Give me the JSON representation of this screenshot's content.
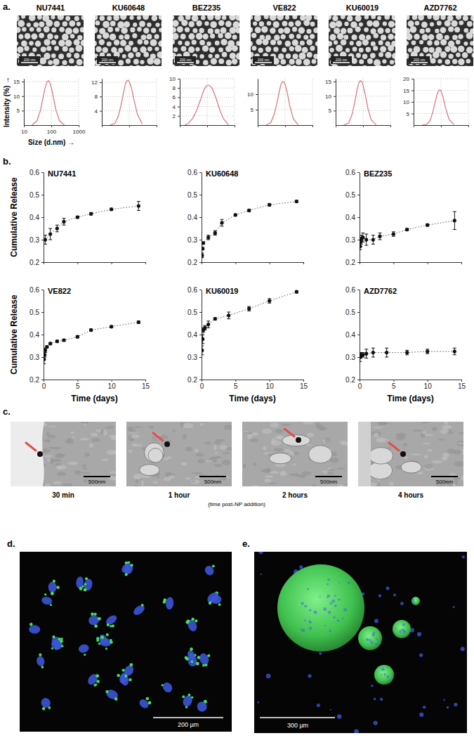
{
  "panel_labels": [
    "a.",
    "b.",
    "c.",
    "d.",
    "e."
  ],
  "tem_images": {
    "scale_bar": "200 nm"
  },
  "chart_data": [
    {
      "type": "line",
      "title": "NU7441",
      "xlabel": "Size (d.nm) →",
      "ylabel": "Intensity (%) →",
      "x": [
        20,
        30,
        40,
        50,
        60,
        70,
        80,
        90,
        100,
        120,
        150,
        200,
        300
      ],
      "values": [
        0,
        1.5,
        5,
        9.5,
        13,
        15,
        15.3,
        14.5,
        13,
        9.5,
        5,
        1.5,
        0
      ],
      "color": "#d9707a",
      "line_style": "solid",
      "log": "x",
      "grid": true,
      "xlim": [
        10,
        1000
      ],
      "xticks": [
        10,
        100,
        1000
      ],
      "ylim": [
        0,
        16
      ],
      "yticks": [
        5,
        10,
        15
      ]
    },
    {
      "type": "line",
      "title": "KU60648",
      "x": [
        20,
        30,
        40,
        50,
        60,
        70,
        80,
        90,
        100,
        120,
        150,
        200,
        300
      ],
      "values": [
        0,
        0.5,
        2.5,
        5.5,
        8.5,
        11,
        12.3,
        12.6,
        12.2,
        10.5,
        7,
        3,
        0.3
      ],
      "color": "#d9707a",
      "line_style": "solid",
      "log": "x",
      "grid": true,
      "tick_labels": "y",
      "xlim": [
        10,
        1000
      ],
      "xticks": [
        10,
        100,
        1000
      ],
      "ylim": [
        0,
        13
      ],
      "yticks": [
        4,
        8,
        12
      ]
    },
    {
      "type": "line",
      "title": "BEZ235",
      "x": [
        15,
        20,
        30,
        40,
        50,
        60,
        70,
        80,
        90,
        100,
        120,
        150,
        200,
        300,
        400,
        600
      ],
      "values": [
        0,
        0.3,
        1.5,
        3,
        4.5,
        5.8,
        7,
        7.8,
        8.3,
        8.6,
        8.6,
        8,
        6.2,
        3,
        1.3,
        0.1
      ],
      "color": "#d9707a",
      "line_style": "solid",
      "log": "x",
      "grid": true,
      "tick_labels": "y",
      "xlim": [
        10,
        1000
      ],
      "xticks": [
        10,
        100,
        1000
      ],
      "ylim": [
        0,
        10
      ],
      "yticks": [
        2,
        4,
        6,
        8,
        10
      ]
    },
    {
      "type": "line",
      "title": "VE822",
      "x": [
        20,
        30,
        40,
        50,
        60,
        70,
        80,
        90,
        100,
        120,
        150,
        200,
        300
      ],
      "values": [
        0,
        0.8,
        3.5,
        7,
        10.5,
        13,
        14,
        14,
        13.2,
        10.5,
        6,
        2,
        0.1
      ],
      "color": "#d9707a",
      "line_style": "solid",
      "log": "x",
      "grid": true,
      "tick_labels": "y",
      "xlim": [
        10,
        1000
      ],
      "xticks": [
        10,
        100,
        1000
      ],
      "ylim": [
        0,
        15
      ],
      "yticks": [
        5,
        10
      ]
    },
    {
      "type": "line",
      "title": "KU60019",
      "x": [
        20,
        30,
        40,
        50,
        60,
        70,
        80,
        90,
        100,
        120,
        150,
        200,
        300
      ],
      "values": [
        0,
        0.8,
        3.8,
        8,
        12,
        14.5,
        15.3,
        15,
        13.8,
        10.5,
        5.8,
        1.8,
        0.1
      ],
      "color": "#d9707a",
      "line_style": "solid",
      "log": "x",
      "grid": true,
      "tick_labels": "y",
      "xlim": [
        10,
        1000
      ],
      "xticks": [
        10,
        100,
        1000
      ],
      "ylim": [
        0,
        16
      ],
      "yticks": [
        5,
        10,
        15
      ]
    },
    {
      "type": "line",
      "title": "AZD7762",
      "x": [
        20,
        30,
        40,
        50,
        60,
        70,
        80,
        90,
        100,
        120,
        150,
        200,
        300
      ],
      "values": [
        0,
        0.3,
        2,
        5.5,
        9.5,
        12.8,
        14.6,
        15.2,
        14.8,
        12,
        7,
        2.3,
        0.2
      ],
      "color": "#d9707a",
      "line_style": "solid",
      "log": "x",
      "grid": true,
      "tick_labels": "y",
      "xlim": [
        10,
        1000
      ],
      "xticks": [
        10,
        100,
        1000
      ],
      "ylim": [
        0,
        20
      ],
      "yticks": [
        5,
        10,
        15,
        20
      ]
    },
    {
      "type": "line",
      "title": "NU7441",
      "ylabel": "Cumulative Release",
      "x": [
        0.25,
        1,
        2,
        3,
        5,
        7,
        10,
        14
      ],
      "values": [
        0.3,
        0.325,
        0.35,
        0.38,
        0.4,
        0.415,
        0.435,
        0.45
      ],
      "errors": [
        0.02,
        0.025,
        0.015,
        0.015,
        0.005,
        0.005,
        0.005,
        0.02
      ],
      "color": "#111111",
      "marker": "circle",
      "line_style": "dotted",
      "tick_labels": "y",
      "xlim": [
        0,
        15
      ],
      "xticks": [
        0,
        5,
        10,
        15
      ],
      "ylim": [
        0.2,
        0.6
      ],
      "yticks": [
        0.2,
        0.3,
        0.4,
        0.5,
        0.6
      ]
    },
    {
      "type": "line",
      "title": "KU60648",
      "x": [
        0.08,
        0.17,
        0.25,
        1,
        2,
        3,
        5,
        7,
        10,
        14
      ],
      "values": [
        0.23,
        0.26,
        0.285,
        0.31,
        0.33,
        0.375,
        0.41,
        0.43,
        0.455,
        0.47
      ],
      "errors": [
        0.01,
        0.005,
        0.005,
        0.01,
        0.01,
        0.015,
        0.005,
        0.005,
        0.005,
        0.005
      ],
      "color": "#111111",
      "marker": "circle",
      "line_style": "dotted",
      "tick_labels": "y",
      "xlim": [
        0,
        15
      ],
      "xticks": [
        0,
        5,
        10,
        15
      ],
      "ylim": [
        0.2,
        0.6
      ],
      "yticks": [
        0.2,
        0.3,
        0.4,
        0.5,
        0.6
      ]
    },
    {
      "type": "line",
      "title": "BEZ235",
      "x": [
        0.08,
        0.17,
        0.25,
        0.5,
        1,
        2,
        3,
        5,
        7,
        10,
        14
      ],
      "values": [
        0.27,
        0.29,
        0.3,
        0.31,
        0.3,
        0.3,
        0.315,
        0.325,
        0.345,
        0.365,
        0.385
      ],
      "errors": [
        0.015,
        0.02,
        0.02,
        0.02,
        0.025,
        0.02,
        0.015,
        0.01,
        0.005,
        0.005,
        0.04
      ],
      "color": "#111111",
      "marker": "circle",
      "line_style": "dotted",
      "tick_labels": "y",
      "xlim": [
        0,
        15
      ],
      "xticks": [
        0,
        5,
        10,
        15
      ],
      "ylim": [
        0.2,
        0.6
      ],
      "yticks": [
        0.2,
        0.3,
        0.4,
        0.5,
        0.6
      ]
    },
    {
      "type": "line",
      "title": "VE822",
      "ylabel": "Cumulative Release",
      "xlabel": "Time (days)",
      "x": [
        0.08,
        0.17,
        0.25,
        0.5,
        1,
        2,
        3,
        5,
        7,
        10,
        14
      ],
      "values": [
        0.29,
        0.31,
        0.33,
        0.345,
        0.36,
        0.37,
        0.375,
        0.39,
        0.42,
        0.435,
        0.455
      ],
      "errors": [
        0.02,
        0.01,
        0.01,
        0.005,
        0.005,
        0.005,
        0.005,
        0.005,
        0.005,
        0.005,
        0.005
      ],
      "color": "#111111",
      "marker": "circle",
      "line_style": "dotted",
      "xlim": [
        0,
        15
      ],
      "xticks": [
        0,
        5,
        10,
        15
      ],
      "ylim": [
        0.2,
        0.6
      ],
      "yticks": [
        0.2,
        0.3,
        0.4,
        0.5,
        0.6
      ]
    },
    {
      "type": "line",
      "title": "KU60019",
      "xlabel": "Time (days)",
      "x": [
        0.08,
        0.17,
        0.25,
        0.5,
        1,
        2,
        4,
        7,
        10,
        14
      ],
      "values": [
        0.33,
        0.38,
        0.42,
        0.43,
        0.445,
        0.47,
        0.485,
        0.515,
        0.55,
        0.59
      ],
      "errors": [
        0.02,
        0.02,
        0.01,
        0.01,
        0.015,
        0.005,
        0.015,
        0.01,
        0.01,
        0.005
      ],
      "color": "#111111",
      "marker": "circle",
      "line_style": "dotted",
      "xlim": [
        0,
        15
      ],
      "xticks": [
        0,
        5,
        10,
        15
      ],
      "ylim": [
        0.2,
        0.6
      ],
      "yticks": [
        0.2,
        0.3,
        0.4,
        0.5,
        0.6
      ]
    },
    {
      "type": "line",
      "title": "AZD7762",
      "xlabel": "Time (days)",
      "x": [
        0.08,
        0.17,
        0.25,
        0.5,
        1,
        2,
        4,
        7,
        10,
        14
      ],
      "values": [
        0.3,
        0.305,
        0.31,
        0.31,
        0.315,
        0.32,
        0.32,
        0.32,
        0.325,
        0.325
      ],
      "errors": [
        0.02,
        0.01,
        0.01,
        0.01,
        0.02,
        0.02,
        0.02,
        0.01,
        0.01,
        0.015
      ],
      "color": "#111111",
      "marker": "circle",
      "line_style": "dotted",
      "xlim": [
        0,
        15
      ],
      "xticks": [
        0,
        5,
        10,
        15
      ],
      "ylim": [
        0.2,
        0.6
      ],
      "yticks": [
        0.2,
        0.3,
        0.4,
        0.5,
        0.6
      ]
    }
  ],
  "uptake": {
    "captions": [
      "30 min",
      "1 hour",
      "2 hours",
      "4 hours"
    ],
    "note": "(time post-NP addition)",
    "scale_bar": "500nm"
  },
  "fluorescence": {
    "scale_bars": [
      "200 µm",
      "300 µm"
    ]
  }
}
